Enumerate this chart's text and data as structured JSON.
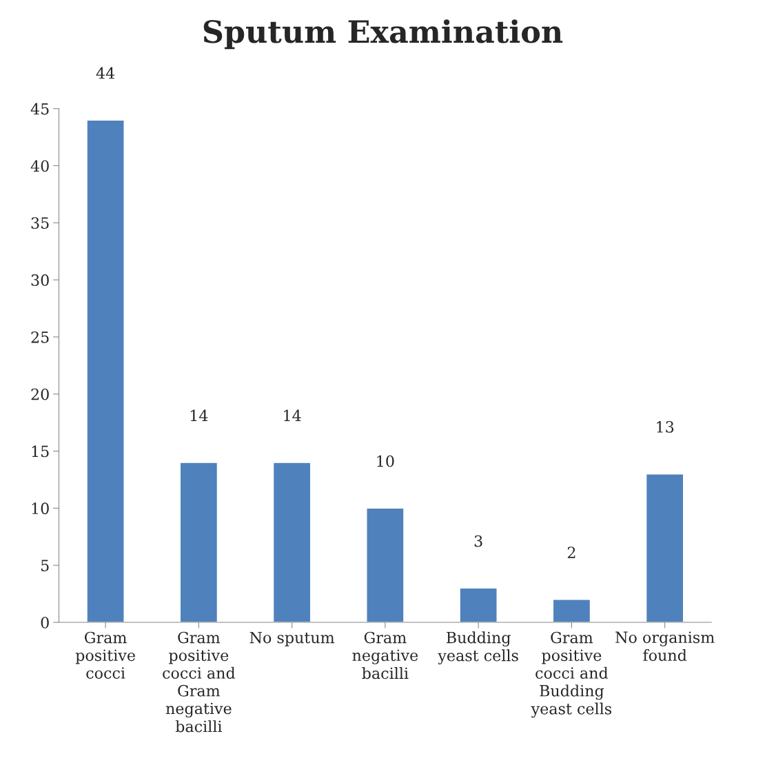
{
  "chart_data": {
    "type": "bar",
    "title": "Sputum Examination",
    "categories": [
      "Gram positive cocci",
      "Gram positive cocci and Gram negative bacilli",
      "No sputum",
      "Gram negative bacilli",
      "Budding yeast cells",
      "Gram positive cocci and Budding yeast cells",
      "No organism found"
    ],
    "values": [
      44,
      14,
      14,
      10,
      3,
      2,
      13
    ],
    "color": "#4f81bd",
    "ylim": [
      0,
      45
    ],
    "yticks": [
      0,
      5,
      10,
      15,
      20,
      25,
      30,
      35,
      40,
      45
    ],
    "data_labels": true,
    "grid": false,
    "legend": false
  }
}
